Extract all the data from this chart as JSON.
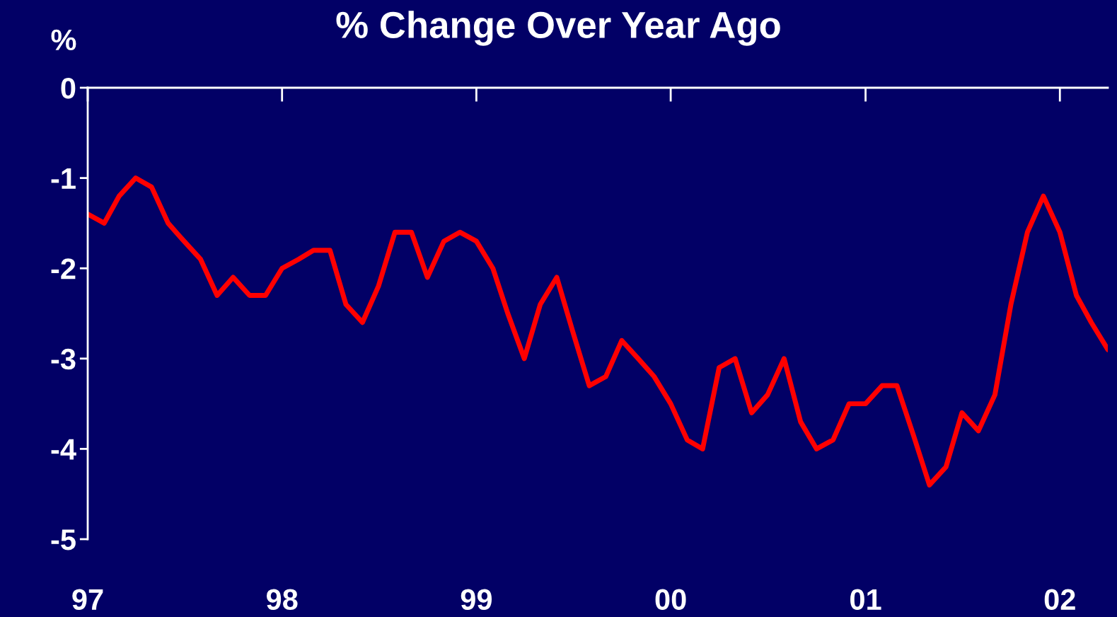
{
  "chart_data": {
    "type": "line",
    "title": "% Change Over Year Ago",
    "ylabel": "%",
    "x": [
      "1997-01",
      "1997-02",
      "1997-03",
      "1997-04",
      "1997-05",
      "1997-06",
      "1997-07",
      "1997-08",
      "1997-09",
      "1997-10",
      "1997-11",
      "1997-12",
      "1998-01",
      "1998-02",
      "1998-03",
      "1998-04",
      "1998-05",
      "1998-06",
      "1998-07",
      "1998-08",
      "1998-09",
      "1998-10",
      "1998-11",
      "1998-12",
      "1999-01",
      "1999-02",
      "1999-03",
      "1999-04",
      "1999-05",
      "1999-06",
      "1999-07",
      "1999-08",
      "1999-09",
      "1999-10",
      "1999-11",
      "1999-12",
      "2000-01",
      "2000-02",
      "2000-03",
      "2000-04",
      "2000-05",
      "2000-06",
      "2000-07",
      "2000-08",
      "2000-09",
      "2000-10",
      "2000-11",
      "2000-12",
      "2001-01",
      "2001-02",
      "2001-03",
      "2001-04",
      "2001-05",
      "2001-06",
      "2001-07",
      "2001-08",
      "2001-09",
      "2001-10",
      "2001-11",
      "2001-12",
      "2002-01",
      "2002-02",
      "2002-03",
      "2002-04"
    ],
    "series": [
      {
        "color": "#ff0000",
        "values": [
          -1.4,
          -1.5,
          -1.2,
          -1.0,
          -1.1,
          -1.5,
          -1.7,
          -1.9,
          -2.3,
          -2.1,
          -2.3,
          -2.3,
          -2.0,
          -1.9,
          -1.8,
          -1.8,
          -2.4,
          -2.6,
          -2.2,
          -1.6,
          -1.6,
          -2.1,
          -1.7,
          -1.6,
          -1.7,
          -2.0,
          -2.5,
          -3.0,
          -2.4,
          -2.1,
          -2.7,
          -3.3,
          -3.2,
          -2.8,
          -3.0,
          -3.2,
          -3.5,
          -3.9,
          -4.0,
          -3.1,
          -3.0,
          -3.6,
          -3.4,
          -3.0,
          -3.7,
          -4.0,
          -3.9,
          -3.5,
          -3.5,
          -3.3,
          -3.3,
          -3.85,
          -4.4,
          -4.2,
          -3.6,
          -3.8,
          -3.4,
          -2.4,
          -1.6,
          -1.2,
          -1.6,
          -2.3,
          -2.6,
          -2.9
        ]
      }
    ],
    "xlim": [
      "1997-01",
      "2002-04"
    ],
    "xticks": [
      {
        "value": "1997",
        "label": "97"
      },
      {
        "value": "1998",
        "label": "98"
      },
      {
        "value": "1999",
        "label": "99"
      },
      {
        "value": "2000",
        "label": "00"
      },
      {
        "value": "2001",
        "label": "01"
      },
      {
        "value": "2002",
        "label": "02"
      }
    ],
    "ylim": [
      -5,
      0
    ],
    "yticks": [
      0,
      -1,
      -2,
      -3,
      -4,
      -5
    ],
    "marker": "none",
    "line_style": "solid"
  }
}
